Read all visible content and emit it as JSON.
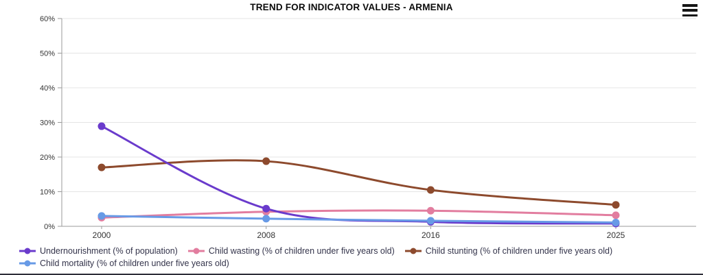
{
  "header": {
    "title": "TREND FOR INDICATOR VALUES - ARMENIA",
    "menu_icon": "hamburger-menu-icon"
  },
  "chart_data": {
    "type": "line",
    "title": "TREND FOR INDICATOR VALUES - ARMENIA",
    "x": [
      2000,
      2008,
      2016,
      2025
    ],
    "x_tick_labels": [
      "2000",
      "2008",
      "2016",
      "2025"
    ],
    "xlim": [
      2000,
      2025
    ],
    "y_tick_labels": [
      "0%",
      "10%",
      "20%",
      "30%",
      "40%",
      "50%",
      "60%"
    ],
    "ylim": [
      0,
      60
    ],
    "grid": true,
    "legend_position": "bottom",
    "series": [
      {
        "name": "Undernourishment (% of population)",
        "color": "#6a3bcc",
        "values": [
          28.9,
          5.1,
          1.3,
          0.8
        ]
      },
      {
        "name": "Child wasting (% of children under five years old)",
        "color": "#e27d9f",
        "values": [
          2.5,
          4.2,
          4.5,
          3.2
        ]
      },
      {
        "name": "Child stunting (% of children under five years old)",
        "color": "#8d4a2d",
        "values": [
          17.0,
          18.8,
          10.5,
          6.2
        ]
      },
      {
        "name": "Child mortality (% of children under five years old)",
        "color": "#679ae6",
        "values": [
          3.0,
          2.2,
          1.6,
          1.1
        ]
      }
    ],
    "draw_order": [
      1,
      2,
      0,
      3
    ],
    "colors": {
      "axis": "#9a9a9a",
      "grid": "#e4e4e4",
      "tick_text": "#333333",
      "legend_text": "#33334a"
    }
  }
}
